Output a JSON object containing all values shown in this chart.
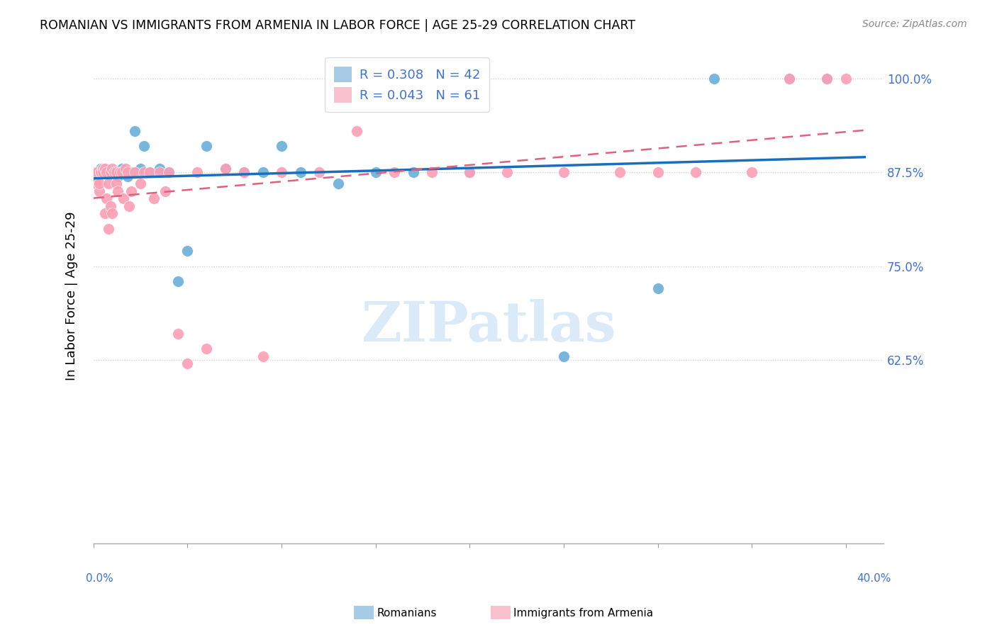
{
  "title": "ROMANIAN VS IMMIGRANTS FROM ARMENIA IN LABOR FORCE | AGE 25-29 CORRELATION CHART",
  "source": "Source: ZipAtlas.com",
  "ylabel": "In Labor Force | Age 25-29",
  "xlim": [
    0.0,
    0.42
  ],
  "ylim": [
    0.38,
    1.04
  ],
  "ytick_positions": [
    0.625,
    0.75,
    0.875,
    1.0
  ],
  "ytick_labels": [
    "62.5%",
    "75.0%",
    "87.5%",
    "100.0%"
  ],
  "blue_color": "#6baed6",
  "pink_color": "#fc9fb5",
  "trend_blue": "#1a6fbd",
  "trend_pink": "#e06080",
  "blue_color_legend": "#a8cce8",
  "pink_color_legend": "#f9c0cd",
  "legend_line1": "R = 0.308   N = 42",
  "legend_line2": "R = 0.043   N = 61",
  "legend_color": "#4472c4",
  "watermark_text": "ZIPatlas",
  "watermark_color": "#daeaf8",
  "blue_x": [
    0.001,
    0.002,
    0.003,
    0.004,
    0.005,
    0.006,
    0.007,
    0.008,
    0.009,
    0.01,
    0.011,
    0.012,
    0.013,
    0.014,
    0.015,
    0.016,
    0.017,
    0.018,
    0.02,
    0.022,
    0.025,
    0.027,
    0.03,
    0.035,
    0.04,
    0.045,
    0.05,
    0.06,
    0.07,
    0.08,
    0.09,
    0.1,
    0.11,
    0.13,
    0.15,
    0.17,
    0.2,
    0.25,
    0.3,
    0.33,
    0.37,
    0.39
  ],
  "blue_y": [
    0.875,
    0.875,
    0.875,
    0.88,
    0.875,
    0.875,
    0.875,
    0.875,
    0.875,
    0.875,
    0.875,
    0.875,
    0.87,
    0.875,
    0.88,
    0.875,
    0.875,
    0.87,
    0.875,
    0.93,
    0.88,
    0.91,
    0.875,
    0.88,
    0.875,
    0.73,
    0.77,
    0.91,
    0.88,
    0.875,
    0.875,
    0.91,
    0.875,
    0.86,
    0.875,
    0.875,
    0.875,
    0.63,
    0.72,
    1.0,
    1.0,
    1.0
  ],
  "pink_x": [
    0.001,
    0.001,
    0.002,
    0.002,
    0.003,
    0.003,
    0.004,
    0.004,
    0.005,
    0.005,
    0.006,
    0.006,
    0.007,
    0.007,
    0.008,
    0.008,
    0.009,
    0.009,
    0.01,
    0.01,
    0.011,
    0.012,
    0.012,
    0.013,
    0.014,
    0.015,
    0.016,
    0.017,
    0.018,
    0.019,
    0.02,
    0.022,
    0.025,
    0.027,
    0.03,
    0.032,
    0.035,
    0.038,
    0.04,
    0.045,
    0.05,
    0.055,
    0.06,
    0.07,
    0.08,
    0.09,
    0.1,
    0.12,
    0.14,
    0.16,
    0.18,
    0.2,
    0.22,
    0.25,
    0.28,
    0.3,
    0.32,
    0.35,
    0.37,
    0.39,
    0.4
  ],
  "pink_y": [
    0.875,
    0.86,
    0.875,
    0.875,
    0.85,
    0.86,
    0.875,
    0.875,
    0.88,
    0.875,
    0.88,
    0.82,
    0.875,
    0.84,
    0.8,
    0.86,
    0.83,
    0.875,
    0.88,
    0.82,
    0.875,
    0.86,
    0.875,
    0.85,
    0.875,
    0.875,
    0.84,
    0.88,
    0.875,
    0.83,
    0.85,
    0.875,
    0.86,
    0.875,
    0.875,
    0.84,
    0.875,
    0.85,
    0.875,
    0.66,
    0.62,
    0.875,
    0.64,
    0.88,
    0.875,
    0.63,
    0.875,
    0.875,
    0.93,
    0.875,
    0.875,
    0.875,
    0.875,
    0.875,
    0.875,
    0.875,
    0.875,
    0.875,
    1.0,
    1.0,
    1.0
  ]
}
